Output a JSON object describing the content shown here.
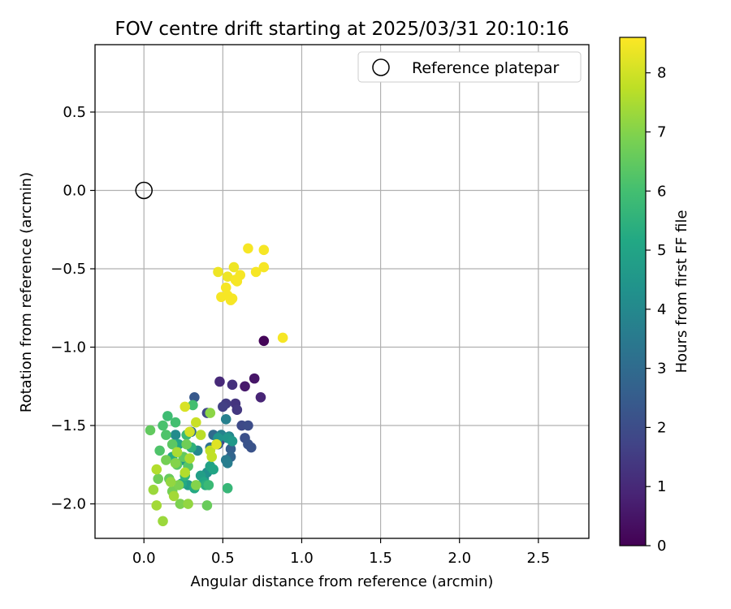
{
  "chart_data": {
    "type": "scatter",
    "title": "FOV centre drift starting at 2025/03/31 20:10:16",
    "xlabel": "Angular distance from reference (arcmin)",
    "ylabel": "Rotation from reference (arcmin)",
    "xlim": [
      -0.31,
      2.82
    ],
    "ylim": [
      -2.22,
      0.93
    ],
    "xticks": [
      0.0,
      0.5,
      1.0,
      1.5,
      2.0,
      2.5
    ],
    "xtick_labels": [
      "0.0",
      "0.5",
      "1.0",
      "1.5",
      "2.0",
      "2.5"
    ],
    "yticks": [
      -2.0,
      -1.5,
      -1.0,
      -0.5,
      0.0,
      0.5
    ],
    "ytick_labels": [
      "−2.0",
      "−1.5",
      "−1.0",
      "−0.5",
      "0.0",
      "0.5"
    ],
    "grid": true,
    "legend": {
      "entries": [
        "Reference platepar"
      ],
      "placement": "upper right"
    },
    "colorbar": {
      "label": "Hours from first FF file",
      "colormap": "viridis",
      "range": [
        0,
        8.6
      ],
      "ticks": [
        0,
        1,
        2,
        3,
        4,
        5,
        6,
        7,
        8
      ],
      "tick_labels": [
        "0",
        "1",
        "2",
        "3",
        "4",
        "5",
        "6",
        "7",
        "8"
      ]
    },
    "reference": {
      "name": "Reference platepar",
      "x": 0.0,
      "y": 0.0
    },
    "series": [
      {
        "fields": [
          "x",
          "y",
          "hours"
        ],
        "points": [
          [
            0.76,
            -0.96,
            0.1
          ],
          [
            0.7,
            -1.2,
            0.5
          ],
          [
            0.64,
            -1.25,
            0.6
          ],
          [
            0.74,
            -1.32,
            0.9
          ],
          [
            0.48,
            -1.22,
            1.0
          ],
          [
            0.56,
            -1.24,
            1.2
          ],
          [
            0.58,
            -1.36,
            1.3
          ],
          [
            0.59,
            -1.4,
            1.4
          ],
          [
            0.52,
            -1.36,
            1.5
          ],
          [
            0.5,
            -1.38,
            1.6
          ],
          [
            0.48,
            -1.6,
            1.7
          ],
          [
            0.4,
            -1.42,
            1.8
          ],
          [
            0.62,
            -1.5,
            1.9
          ],
          [
            0.66,
            -1.5,
            2.0
          ],
          [
            0.64,
            -1.58,
            2.1
          ],
          [
            0.66,
            -1.62,
            2.2
          ],
          [
            0.68,
            -1.64,
            2.2
          ],
          [
            0.32,
            -1.32,
            2.4
          ],
          [
            0.47,
            -1.62,
            2.5
          ],
          [
            0.55,
            -1.65,
            2.6
          ],
          [
            0.55,
            -1.7,
            2.8
          ],
          [
            0.3,
            -1.54,
            3.0
          ],
          [
            0.44,
            -1.56,
            3.0
          ],
          [
            0.42,
            -1.64,
            3.2
          ],
          [
            0.46,
            -1.62,
            3.4
          ],
          [
            0.52,
            -1.72,
            3.5
          ],
          [
            0.53,
            -1.74,
            3.6
          ],
          [
            0.52,
            -1.46,
            3.7
          ],
          [
            0.49,
            -1.56,
            3.8
          ],
          [
            0.54,
            -1.57,
            3.9
          ],
          [
            0.34,
            -1.66,
            4.0
          ],
          [
            0.2,
            -1.56,
            4.1
          ],
          [
            0.38,
            -1.84,
            4.2
          ],
          [
            0.4,
            -1.8,
            4.3
          ],
          [
            0.47,
            -1.58,
            4.4
          ],
          [
            0.53,
            -1.58,
            4.5
          ],
          [
            0.56,
            -1.6,
            4.6
          ],
          [
            0.25,
            -1.72,
            4.6
          ],
          [
            0.28,
            -1.88,
            4.7
          ],
          [
            0.36,
            -1.82,
            4.8
          ],
          [
            0.42,
            -1.76,
            4.9
          ],
          [
            0.44,
            -1.78,
            5.0
          ],
          [
            0.22,
            -1.62,
            5.0
          ],
          [
            0.38,
            -1.86,
            5.1
          ],
          [
            0.24,
            -1.87,
            5.2
          ],
          [
            0.32,
            -1.9,
            5.2
          ],
          [
            0.18,
            -1.7,
            5.3
          ],
          [
            0.39,
            -1.88,
            5.4
          ],
          [
            0.3,
            -1.64,
            5.5
          ],
          [
            0.26,
            -1.82,
            5.6
          ],
          [
            0.53,
            -1.9,
            5.7
          ],
          [
            0.27,
            -1.56,
            5.8
          ],
          [
            0.41,
            -1.88,
            5.8
          ],
          [
            0.15,
            -1.44,
            5.9
          ],
          [
            0.2,
            -1.48,
            6.0
          ],
          [
            0.31,
            -1.37,
            6.0
          ],
          [
            0.12,
            -1.5,
            6.1
          ],
          [
            0.14,
            -1.56,
            6.2
          ],
          [
            0.1,
            -1.66,
            6.2
          ],
          [
            0.21,
            -1.75,
            6.3
          ],
          [
            0.28,
            -1.76,
            6.3
          ],
          [
            0.18,
            -1.62,
            6.4
          ],
          [
            0.04,
            -1.53,
            6.5
          ],
          [
            0.25,
            -1.7,
            6.5
          ],
          [
            0.4,
            -2.01,
            6.6
          ],
          [
            0.16,
            -1.84,
            6.6
          ],
          [
            0.27,
            -1.62,
            6.7
          ],
          [
            0.09,
            -1.84,
            6.7
          ],
          [
            0.14,
            -1.72,
            6.8
          ],
          [
            0.18,
            -1.92,
            6.8
          ],
          [
            0.22,
            -1.88,
            6.9
          ],
          [
            0.23,
            -2.0,
            6.9
          ],
          [
            0.2,
            -1.74,
            7.0
          ],
          [
            0.33,
            -1.88,
            7.0
          ],
          [
            0.42,
            -1.42,
            7.1
          ],
          [
            0.17,
            -1.86,
            7.2
          ],
          [
            0.28,
            -2.0,
            7.2
          ],
          [
            0.12,
            -2.11,
            7.3
          ],
          [
            0.06,
            -1.91,
            7.3
          ],
          [
            0.19,
            -1.95,
            7.4
          ],
          [
            0.08,
            -2.01,
            7.4
          ],
          [
            0.21,
            -1.67,
            7.5
          ],
          [
            0.29,
            -1.71,
            7.5
          ],
          [
            0.26,
            -1.8,
            7.6
          ],
          [
            0.08,
            -1.78,
            7.6
          ],
          [
            0.36,
            -1.56,
            7.7
          ],
          [
            0.42,
            -1.66,
            7.8
          ],
          [
            0.43,
            -1.7,
            7.8
          ],
          [
            0.33,
            -1.48,
            7.9
          ],
          [
            0.29,
            -1.54,
            8.0
          ],
          [
            0.26,
            -1.38,
            8.1
          ],
          [
            0.46,
            -1.62,
            8.2
          ],
          [
            0.47,
            -0.52,
            8.4
          ],
          [
            0.57,
            -0.49,
            8.4
          ],
          [
            0.53,
            -0.55,
            8.4
          ],
          [
            0.58,
            -0.57,
            8.5
          ],
          [
            0.59,
            -0.58,
            8.5
          ],
          [
            0.61,
            -0.54,
            8.5
          ],
          [
            0.66,
            -0.37,
            8.5
          ],
          [
            0.76,
            -0.38,
            8.5
          ],
          [
            0.76,
            -0.49,
            8.5
          ],
          [
            0.71,
            -0.52,
            8.5
          ],
          [
            0.52,
            -0.62,
            8.5
          ],
          [
            0.49,
            -0.68,
            8.5
          ],
          [
            0.53,
            -0.67,
            8.5
          ],
          [
            0.56,
            -0.69,
            8.5
          ],
          [
            0.55,
            -0.7,
            8.5
          ],
          [
            0.88,
            -0.94,
            8.5
          ]
        ]
      }
    ]
  }
}
